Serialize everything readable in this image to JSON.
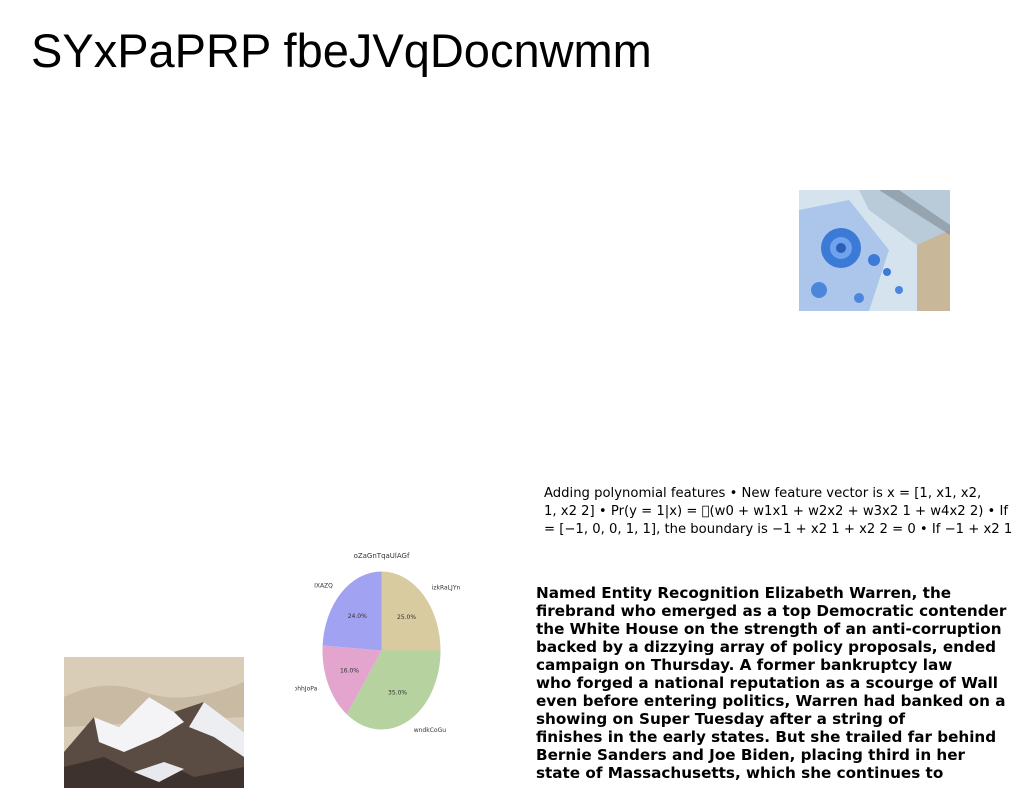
{
  "document": {
    "title": "SYxPaPRP fbeJVqDocnwmm"
  },
  "images": {
    "top_right": {
      "icon": "paint-roller-image",
      "colors": [
        "#cfe0ee",
        "#3b7ad6",
        "#c9b79a"
      ]
    },
    "bottom_left": {
      "icon": "snowy-mountain-image",
      "colors": [
        "#d9cdb8",
        "#5b4c43",
        "#f4f4f6"
      ]
    }
  },
  "features_text": {
    "lines": [
      "Adding polynomial features • New feature vector is x = [1, x1, x2,",
      "1, x2 2] • Pr(y = 1|x) = \u0000(w0 + w1x1 + w2x2 + w3x2 1 + w4x2 2) • If",
      "= [−1, 0, 0, 1, 1], the boundary is −1 + x2 1 + x2 2 = 0 • If −1 + x2 1"
    ]
  },
  "ner_text": {
    "lines": [
      "Named Entity Recognition Elizabeth Warren, the",
      "firebrand who emerged as a top Democratic contender",
      "the White House on the strength of an anti-corruption",
      "backed by a dizzying array of policy proposals, ended",
      "campaign on Thursday. A former bankruptcy law",
      "who forged a national reputation as a scourge of Wall",
      "even before entering politics, Warren had banked on a",
      "showing on Super Tuesday after a string of",
      "finishes in the early states. But she trailed far behind",
      "Bernie Sanders and Joe Biden, placing third in her",
      "state of Massachusetts, which she continues to"
    ]
  },
  "chart_data": {
    "type": "pie",
    "title": "oZaGnTqaUlAGf",
    "categories": [
      "izkRaLJYn",
      "wndkCoGu",
      "CohhJoPa",
      "IXAZQ"
    ],
    "values": [
      25.0,
      35.0,
      16.0,
      24.0
    ],
    "value_labels": [
      "25.0%",
      "35.0%",
      "16.0%",
      "24.0%"
    ],
    "colors": [
      "#d8cba0",
      "#b6d29f",
      "#e3a4ce",
      "#a2a2f2"
    ]
  }
}
